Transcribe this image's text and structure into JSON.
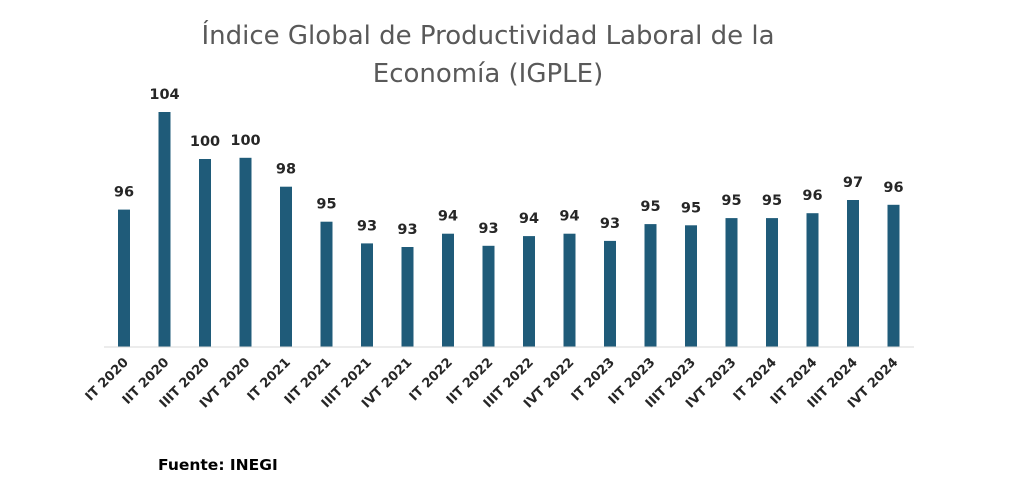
{
  "chart_data": {
    "type": "bar",
    "title_lines": [
      "Índice Global de Productividad Laboral de la",
      "Economía (IGPLE)"
    ],
    "categories": [
      "IT 2020",
      "IIT 2020",
      "IIIT 2020",
      "IVT 2020",
      "IT 2021",
      "IIT 2021",
      "IIIT 2021",
      "IVT 2021",
      "IT 2022",
      "IIT 2022",
      "IIIT 2022",
      "IVT 2022",
      "IT 2023",
      "IIT 2023",
      "IIIT 2023",
      "IVT 2023",
      "IT 2024",
      "IIT 2024",
      "IIIT 2024",
      "IVT 2024"
    ],
    "values": [
      95.9,
      104,
      100.1,
      100.2,
      97.8,
      94.9,
      93.1,
      92.8,
      93.9,
      92.9,
      93.7,
      93.9,
      93.3,
      94.7,
      94.6,
      95.2,
      95.2,
      95.6,
      96.7,
      96.3
    ],
    "value_labels": [
      "96",
      "104",
      "100",
      "100",
      "98",
      "95",
      "93",
      "93",
      "94",
      "93",
      "94",
      "94",
      "93",
      "95",
      "95",
      "95",
      "95",
      "96",
      "97",
      "96"
    ],
    "xlabel": "",
    "ylabel": "",
    "ylim": [
      84.5,
      104
    ],
    "grid": false,
    "bar_color": "#1f5b79",
    "axis_color": "#d9d9d9"
  },
  "source": "Fuente: INEGI"
}
